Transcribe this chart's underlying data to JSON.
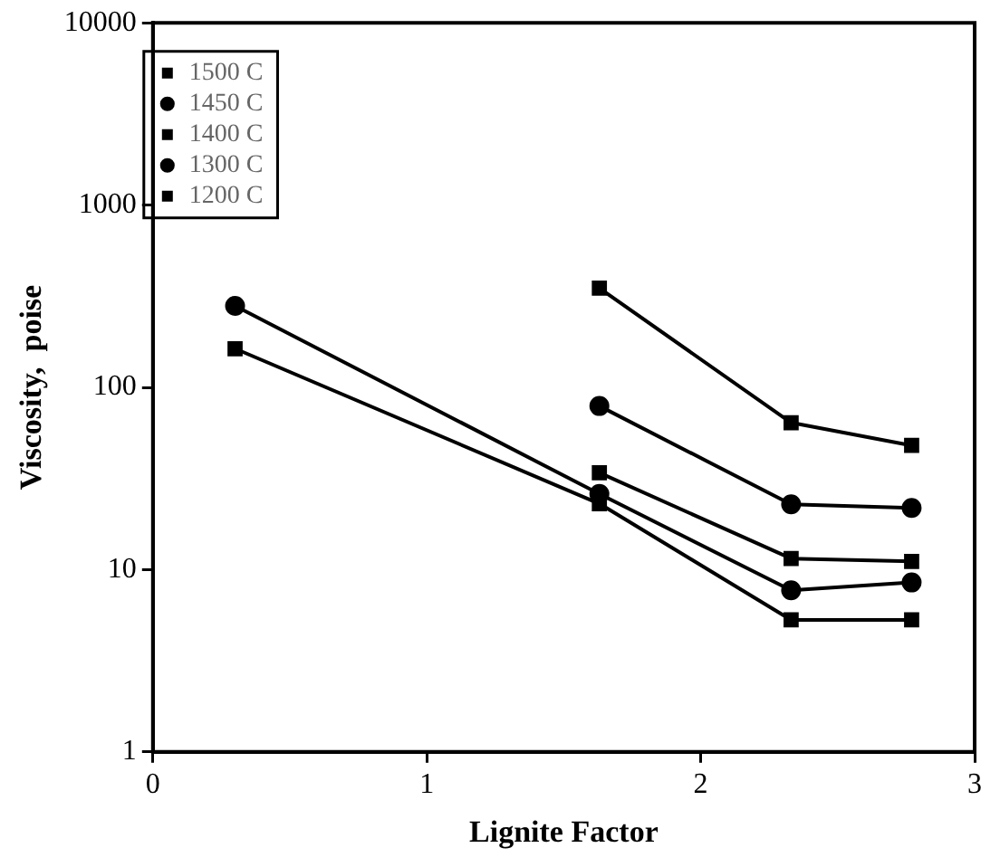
{
  "chart_data": {
    "type": "line",
    "xlabel": "Lignite Factor",
    "ylabel": "Viscosity,  poise",
    "log": "y",
    "xlim": [
      0,
      3
    ],
    "xticks": [
      0,
      1,
      2,
      3
    ],
    "ylim": [
      1,
      10000
    ],
    "yticks": [
      1,
      10,
      100,
      1000,
      10000
    ],
    "grid": false,
    "legend": "top left",
    "line_style": "solid",
    "series": [
      {
        "name": "1500 C",
        "color": "#000000",
        "marker": "square",
        "x": [
          0.3,
          1.63,
          2.33,
          2.77
        ],
        "values": [
          163,
          23,
          5.3,
          5.3
        ]
      },
      {
        "name": "1450 C",
        "color": "#000000",
        "marker": "circle",
        "x": [
          0.3,
          1.63,
          2.33,
          2.77
        ],
        "values": [
          280,
          26,
          7.7,
          8.5
        ]
      },
      {
        "name": "1400 C",
        "color": "#000000",
        "marker": "square",
        "x": [
          1.63,
          2.33,
          2.77
        ],
        "values": [
          34,
          11.5,
          11.1
        ]
      },
      {
        "name": "1300 C",
        "color": "#000000",
        "marker": "circle",
        "x": [
          1.63,
          2.33,
          2.77
        ],
        "values": [
          79,
          22.8,
          21.8
        ]
      },
      {
        "name": "1200 C",
        "color": "#000000",
        "marker": "square",
        "x": [
          1.63,
          2.33,
          2.77
        ],
        "values": [
          350,
          64,
          48
        ]
      }
    ]
  }
}
